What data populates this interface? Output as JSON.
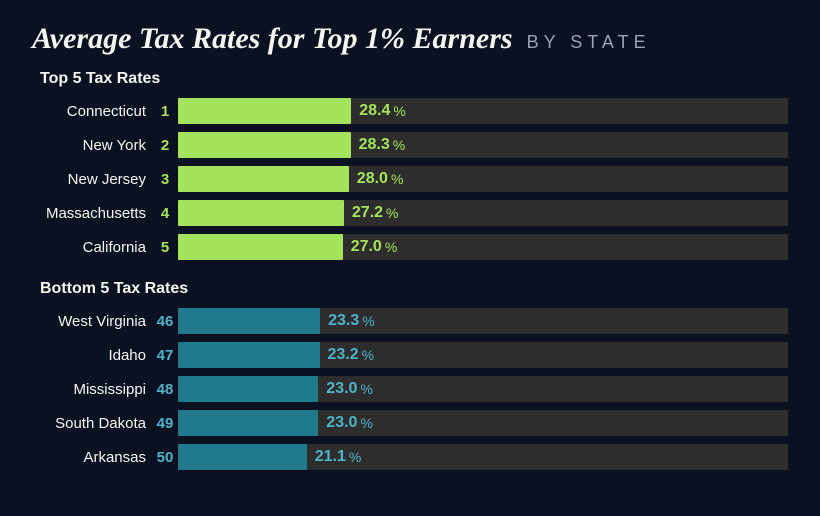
{
  "colors": {
    "background": "#0a1222",
    "text_light": "#f5f5f0",
    "title_sub": "#9aa3b0",
    "track": "#2d2d2d",
    "top_bar": "#a6e35c",
    "top_rank": "#a6e35c",
    "top_value": "#a6e35c",
    "bottom_bar": "#1f7a8c",
    "bottom_rank": "#4fb3c9",
    "bottom_value": "#4fb3c9"
  },
  "layout": {
    "title_fontsize": 30,
    "bar_max_percent": 100,
    "bar_scale": 1.0
  },
  "title": {
    "main": "Average Tax Rates for Top 1% Earners",
    "sub": "BY STATE"
  },
  "sections": [
    {
      "heading": "Top 5 Tax Rates",
      "palette": "top",
      "rows": [
        {
          "state": "Connecticut",
          "rank": 1,
          "value": 28.4
        },
        {
          "state": "New York",
          "rank": 2,
          "value": 28.3
        },
        {
          "state": "New Jersey",
          "rank": 3,
          "value": 28.0
        },
        {
          "state": "Massachusetts",
          "rank": 4,
          "value": 27.2
        },
        {
          "state": "California",
          "rank": 5,
          "value": 27.0
        }
      ]
    },
    {
      "heading": "Bottom 5 Tax Rates",
      "palette": "bottom",
      "rows": [
        {
          "state": "West Virginia",
          "rank": 46,
          "value": 23.3
        },
        {
          "state": "Idaho",
          "rank": 47,
          "value": 23.2
        },
        {
          "state": "Mississippi",
          "rank": 48,
          "value": 23.0
        },
        {
          "state": "South Dakota",
          "rank": 49,
          "value": 23.0
        },
        {
          "state": "Arkansas",
          "rank": 50,
          "value": 21.1
        }
      ]
    }
  ]
}
